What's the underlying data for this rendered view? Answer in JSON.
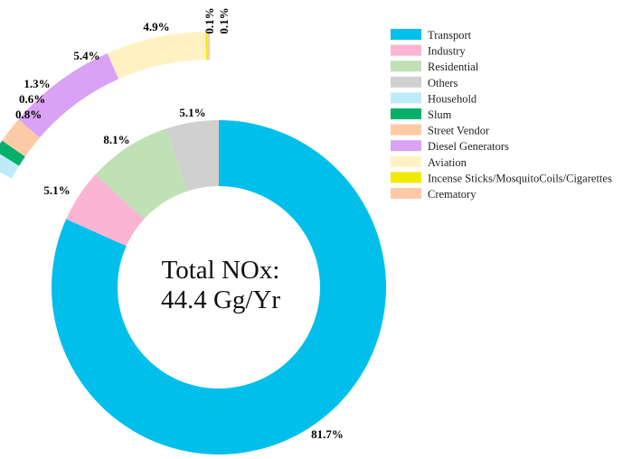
{
  "chart_data": [
    {
      "type": "pie",
      "variant": "donut",
      "center_label": [
        "Total NOx:",
        "44.4 Gg/Yr"
      ],
      "categories": [
        "Transport",
        "Industry",
        "Residential",
        "Others"
      ],
      "values": [
        81.7,
        5.1,
        8.1,
        5.1
      ],
      "value_labels": [
        "81.7%",
        "5.1%",
        "8.1%",
        "5.1%"
      ],
      "colors": [
        "#00BFEB",
        "#FBB4D2",
        "#BFE1B5",
        "#D0D0D0"
      ]
    },
    {
      "type": "pie",
      "variant": "exploded-ring-segment",
      "categories": [
        "Household",
        "Slum",
        "Street Vendor",
        "Diesel Generators",
        "Aviation",
        "Incense Sticks/MosquitoCoils/Cigarettes",
        "Crematory"
      ],
      "values": [
        0.8,
        0.6,
        1.3,
        5.4,
        4.9,
        0.1,
        0.1
      ],
      "value_labels": [
        "0.8%",
        "0.6%",
        "1.3%",
        "5.4%",
        "4.9%",
        "0.1%",
        "0.1%"
      ],
      "colors": [
        "#BDEBF8",
        "#00B06B",
        "#FCCBA6",
        "#D9A2F4",
        "#FFF2C2",
        "#F2EA00",
        "#FCCBA6"
      ]
    }
  ],
  "legend": {
    "placement": "right",
    "items": [
      {
        "label": "Transport",
        "color": "#00BFEB"
      },
      {
        "label": "Industry",
        "color": "#FBB4D2"
      },
      {
        "label": "Residential",
        "color": "#BFE1B5"
      },
      {
        "label": "Others",
        "color": "#D0D0D0"
      },
      {
        "label": "Household",
        "color": "#BDEBF8"
      },
      {
        "label": "Slum",
        "color": "#00B06B"
      },
      {
        "label": "Street Vendor",
        "color": "#FCCBA6"
      },
      {
        "label": "Diesel Generators",
        "color": "#D9A2F4"
      },
      {
        "label": "Aviation",
        "color": "#FFF2C2"
      },
      {
        "label": "Incense Sticks/MosquitoCoils/Cigarettes",
        "color": "#F2EA00"
      },
      {
        "label": "Crematory",
        "color": "#FCCBA6"
      }
    ]
  }
}
